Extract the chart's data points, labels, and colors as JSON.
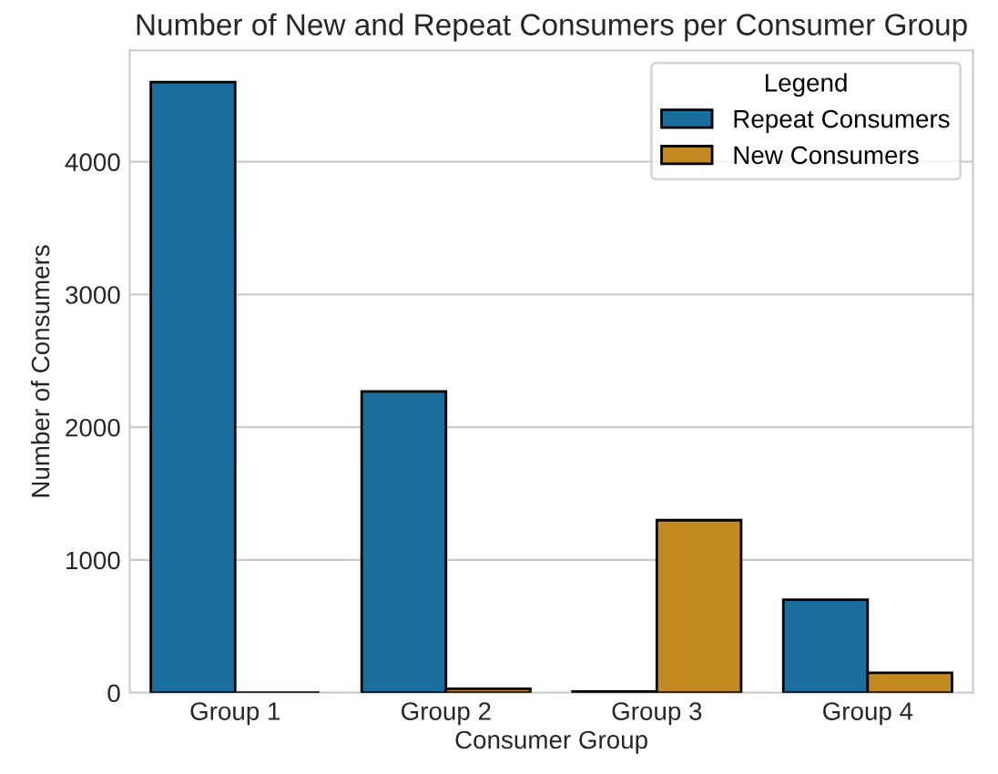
{
  "chart_data": {
    "type": "bar",
    "title": "Number of New and Repeat Consumers per Consumer Group",
    "xlabel": "Consumer Group",
    "ylabel": "Number of Consumers",
    "legend_title": "Legend",
    "categories": [
      "Group 1",
      "Group 2",
      "Group 3",
      "Group 4"
    ],
    "series": [
      {
        "name": "Repeat Consumers",
        "color": "#1a6e9e",
        "values": [
          4600,
          2270,
          10,
          700
        ]
      },
      {
        "name": "New Consumers",
        "color": "#c38a22",
        "values": [
          null,
          30,
          1300,
          150
        ]
      }
    ],
    "ylim": [
      0,
      4840
    ],
    "yticks": [
      0,
      1000,
      2000,
      3000,
      4000
    ],
    "grid": "y",
    "legend": "top right"
  }
}
